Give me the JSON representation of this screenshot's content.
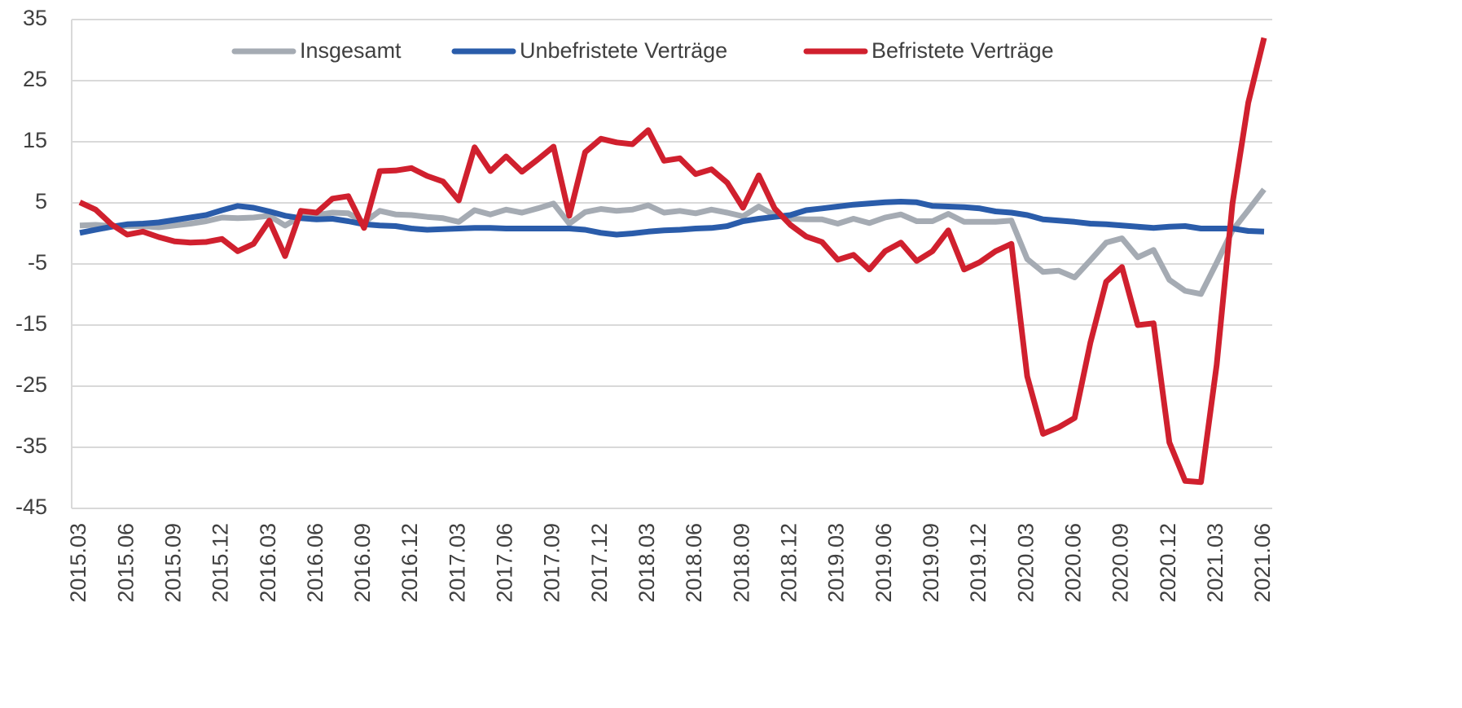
{
  "chart_data": {
    "type": "line",
    "categories": [
      "2015.03",
      null,
      null,
      "2015.06",
      null,
      null,
      "2015.09",
      null,
      null,
      "2015.12",
      null,
      null,
      "2016.03",
      null,
      null,
      "2016.06",
      null,
      null,
      "2016.09",
      null,
      null,
      "2016.12",
      null,
      null,
      "2017.03",
      null,
      null,
      "2017.06",
      null,
      null,
      "2017.09",
      null,
      null,
      "2017.12",
      null,
      null,
      "2018.03",
      null,
      null,
      "2018.06",
      null,
      null,
      "2018.09",
      null,
      null,
      "2018.12",
      null,
      null,
      "2019.03",
      null,
      null,
      "2019.06",
      null,
      null,
      "2019.09",
      null,
      null,
      "2019.12",
      null,
      null,
      "2020.03",
      null,
      null,
      "2020.06",
      null,
      null,
      "2020.09",
      null,
      null,
      "2020.12",
      null,
      null,
      "2021.03",
      null,
      null,
      "2021.06"
    ],
    "series": [
      {
        "name": "Insgesamt",
        "color": "#a5abb3",
        "values": [
          1.3,
          1.4,
          1.2,
          1.2,
          1.2,
          1.0,
          1.3,
          1.6,
          2.0,
          2.6,
          2.5,
          2.6,
          2.9,
          1.3,
          2.8,
          3.0,
          3.4,
          3.3,
          1.8,
          3.7,
          3.1,
          3.0,
          2.7,
          2.5,
          1.9,
          3.8,
          3.1,
          3.9,
          3.4,
          4.1,
          4.9,
          1.6,
          3.5,
          4.0,
          3.7,
          3.9,
          4.6,
          3.4,
          3.7,
          3.3,
          3.9,
          3.4,
          2.8,
          4.4,
          3.0,
          2.4,
          2.3,
          2.3,
          1.6,
          2.4,
          1.7,
          2.6,
          3.1,
          2.0,
          2.0,
          3.2,
          1.9,
          1.9,
          1.9,
          2.1,
          -4.2,
          -6.3,
          -6.1,
          -7.2,
          -4.4,
          -1.5,
          -0.8,
          -3.9,
          -2.7,
          -7.6,
          -9.4,
          -9.9,
          -4.8,
          0.5,
          3.8,
          7.2
        ]
      },
      {
        "name": "Unbefristete Verträge",
        "color": "#2a5caa",
        "values": [
          0.1,
          0.6,
          1.1,
          1.5,
          1.6,
          1.8,
          2.2,
          2.6,
          3.0,
          3.8,
          4.5,
          4.2,
          3.6,
          2.9,
          2.5,
          2.3,
          2.4,
          2.0,
          1.5,
          1.3,
          1.2,
          0.8,
          0.6,
          0.7,
          0.8,
          0.9,
          0.9,
          0.8,
          0.8,
          0.8,
          0.8,
          0.8,
          0.6,
          0.1,
          -0.2,
          0.0,
          0.3,
          0.5,
          0.6,
          0.8,
          0.9,
          1.2,
          2.0,
          2.4,
          2.7,
          3.0,
          3.8,
          4.1,
          4.4,
          4.7,
          4.9,
          5.1,
          5.2,
          5.1,
          4.5,
          4.4,
          4.3,
          4.1,
          3.6,
          3.4,
          3.0,
          2.3,
          2.1,
          1.9,
          1.6,
          1.5,
          1.3,
          1.1,
          0.9,
          1.1,
          1.2,
          0.8,
          0.8,
          0.8,
          0.4,
          0.3
        ]
      },
      {
        "name": "Befristete Verträge",
        "color": "#d0202e",
        "values": [
          5.1,
          3.9,
          1.5,
          -0.2,
          0.3,
          -0.6,
          -1.3,
          -1.5,
          -1.4,
          -0.9,
          -2.9,
          -1.7,
          2.1,
          -3.7,
          3.7,
          3.4,
          5.7,
          6.1,
          0.9,
          10.2,
          10.3,
          10.7,
          9.4,
          8.5,
          5.4,
          14.1,
          10.2,
          12.6,
          10.1,
          12.1,
          14.2,
          2.9,
          13.3,
          15.5,
          14.9,
          14.6,
          16.9,
          11.9,
          12.3,
          9.7,
          10.5,
          8.3,
          4.2,
          9.5,
          4.1,
          1.4,
          -0.5,
          -1.4,
          -4.3,
          -3.5,
          -5.9,
          -2.9,
          -1.5,
          -4.5,
          -2.9,
          0.5,
          -5.9,
          -4.7,
          -2.9,
          -1.7,
          -23.4,
          -32.8,
          -31.7,
          -30.2,
          -17.9,
          -7.9,
          -5.5,
          -15.0,
          -14.7,
          -34.2,
          -40.5,
          -40.7,
          -21.5,
          4.9,
          21.4,
          32.0
        ]
      }
    ],
    "ylim": [
      -45,
      35
    ],
    "yticks": [
      35,
      25,
      15,
      5,
      -5,
      -15,
      -25,
      -35,
      -45
    ],
    "grid": true,
    "legend": "top"
  }
}
